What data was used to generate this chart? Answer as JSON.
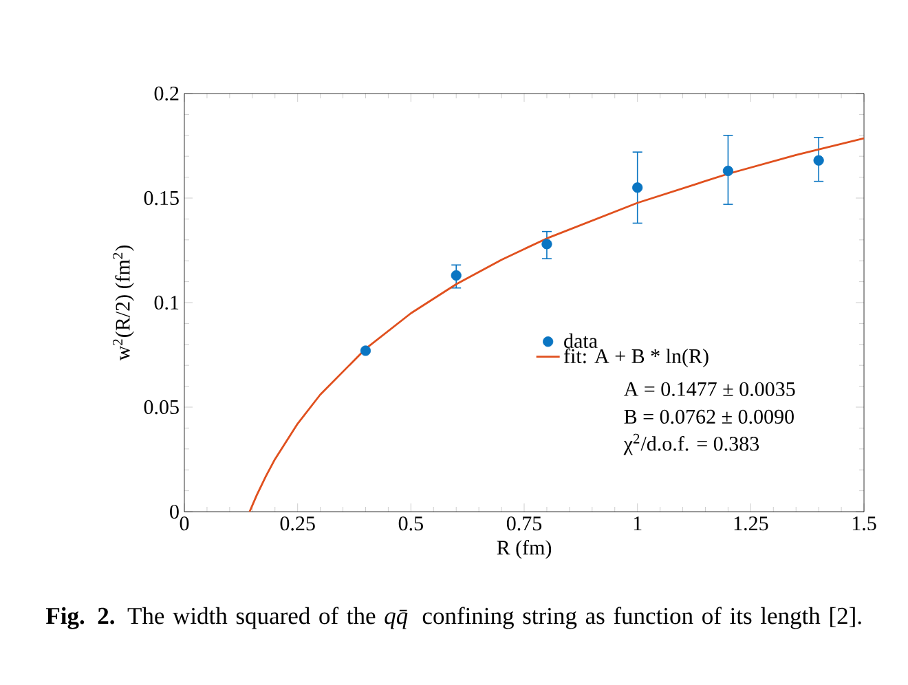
{
  "chart_data": {
    "type": "scatter",
    "xlabel": "R (fm)",
    "ylabel": "w$^{2}$(R/2) (fm$^{2}$)",
    "xlim": [
      0,
      1.5
    ],
    "xticks": [
      0,
      0.25,
      0.5,
      0.75,
      1,
      1.25,
      1.5
    ],
    "ylim": [
      0,
      0.2
    ],
    "yticks": [
      0,
      0.05,
      0.1,
      0.15,
      0.2
    ],
    "legend": "bottom right",
    "series": [
      {
        "name": "data",
        "marker": "circle",
        "color": "#0a75c2",
        "x": [
          0.4,
          0.6,
          0.8,
          1.0,
          1.2,
          1.4
        ],
        "values": [
          0.077,
          0.113,
          0.128,
          0.155,
          0.163,
          0.168
        ],
        "errors": [
          null,
          [
            0.107,
            0.118
          ],
          [
            0.121,
            0.134
          ],
          [
            0.138,
            0.172
          ],
          [
            0.147,
            0.18
          ],
          [
            0.158,
            0.179
          ]
        ]
      },
      {
        "name": "fit: A + B * ln(R)",
        "type": "line",
        "marker": "none",
        "color": "#e0501e",
        "x": [
          0.144,
          0.16,
          0.18,
          0.2,
          0.25,
          0.3,
          0.4,
          0.5,
          0.6,
          0.7,
          0.8,
          1.0,
          1.2,
          1.35,
          1.5
        ],
        "values": [
          0,
          0.008,
          0.017,
          0.0251,
          0.0421,
          0.056,
          0.0779,
          0.0949,
          0.1088,
          0.1205,
          0.1307,
          0.1477,
          0.1616,
          0.1706,
          0.1786
        ]
      }
    ],
    "annotations": [
      "A = 0.1477 ± 0.0035",
      "B = 0.0762 ± 0.0090",
      "χ$^{2}$/d.o.f. = 0.383",
      "**Fig. 2.** The width squared of the *qq̄* confining string as function of its length [2]."
    ]
  }
}
